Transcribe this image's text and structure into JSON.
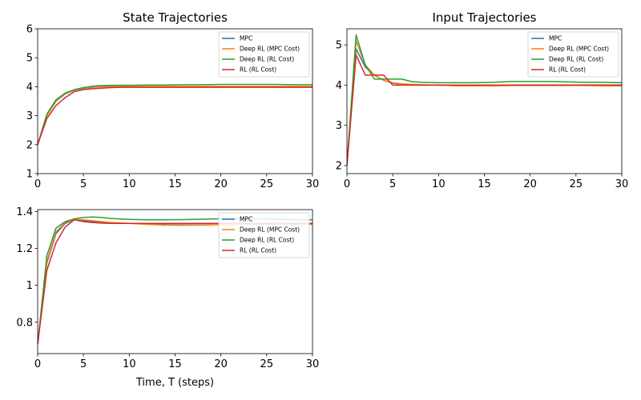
{
  "chart_data": [
    {
      "type": "line",
      "title": "State Trajectories",
      "xlabel": "",
      "ylabel": "",
      "xlim": [
        0,
        30
      ],
      "ylim": [
        1,
        6
      ],
      "xticks": [
        0,
        5,
        10,
        15,
        20,
        25,
        30
      ],
      "yticks": [
        1,
        2,
        3,
        4,
        5,
        6
      ],
      "legend": "top-right",
      "grid": false,
      "x": [
        0,
        1,
        2,
        3,
        4,
        5,
        6,
        7,
        8,
        9,
        10,
        12,
        14,
        16,
        18,
        20,
        22,
        24,
        26,
        28,
        30
      ],
      "series": [
        {
          "name": "MPC",
          "color": "#1f77b4",
          "values": [
            2.0,
            3.0,
            3.5,
            3.75,
            3.88,
            3.95,
            3.98,
            4.0,
            4.0,
            4.0,
            4.0,
            4.0,
            4.0,
            4.0,
            4.0,
            4.0,
            4.0,
            4.0,
            4.0,
            4.0,
            4.0
          ]
        },
        {
          "name": "Deep RL (MPC Cost)",
          "color": "#ff7f0e",
          "values": [
            2.0,
            3.0,
            3.52,
            3.76,
            3.89,
            3.96,
            3.99,
            4.0,
            4.0,
            4.01,
            4.01,
            4.01,
            4.01,
            4.01,
            4.01,
            4.01,
            4.01,
            4.01,
            4.01,
            4.01,
            4.01
          ]
        },
        {
          "name": "Deep RL (RL Cost)",
          "color": "#2ca02c",
          "values": [
            2.0,
            3.05,
            3.55,
            3.78,
            3.9,
            3.97,
            4.02,
            4.04,
            4.05,
            4.05,
            4.05,
            4.06,
            4.06,
            4.07,
            4.07,
            4.08,
            4.08,
            4.08,
            4.08,
            4.07,
            4.07
          ]
        },
        {
          "name": "RL (RL Cost)",
          "color": "#d62728",
          "values": [
            2.0,
            2.9,
            3.35,
            3.62,
            3.83,
            3.9,
            3.93,
            3.95,
            3.97,
            3.98,
            3.98,
            3.98,
            3.98,
            3.98,
            3.98,
            3.98,
            3.98,
            3.98,
            3.98,
            3.98,
            3.98
          ]
        }
      ]
    },
    {
      "type": "line",
      "title": "Input Trajectories",
      "xlabel": "",
      "ylabel": "",
      "xlim": [
        0,
        30
      ],
      "ylim": [
        1.8,
        5.4
      ],
      "xticks": [
        0,
        5,
        10,
        15,
        20,
        25,
        30
      ],
      "yticks": [
        2,
        3,
        4,
        5
      ],
      "legend": "top-right",
      "grid": false,
      "x": [
        0,
        1,
        2,
        3,
        4,
        5,
        6,
        7,
        8,
        10,
        12,
        14,
        16,
        18,
        20,
        22,
        24,
        26,
        28,
        30
      ],
      "series": [
        {
          "name": "MPC",
          "color": "#1f77b4",
          "values": [
            2.0,
            4.9,
            4.45,
            4.25,
            4.12,
            4.05,
            4.02,
            4.01,
            4.0,
            4.0,
            3.99,
            3.99,
            3.99,
            4.0,
            4.0,
            4.0,
            4.0,
            4.0,
            4.0,
            4.0
          ]
        },
        {
          "name": "Deep RL (MPC Cost)",
          "color": "#ff7f0e",
          "values": [
            2.0,
            5.1,
            4.5,
            4.25,
            4.12,
            4.06,
            4.03,
            4.02,
            4.01,
            4.0,
            3.98,
            3.98,
            3.98,
            3.99,
            3.99,
            3.99,
            3.99,
            3.99,
            3.98,
            3.98
          ]
        },
        {
          "name": "Deep RL (RL Cost)",
          "color": "#2ca02c",
          "values": [
            2.0,
            5.25,
            4.5,
            4.15,
            4.15,
            4.15,
            4.15,
            4.09,
            4.07,
            4.06,
            4.06,
            4.06,
            4.07,
            4.09,
            4.09,
            4.09,
            4.08,
            4.07,
            4.07,
            4.06
          ]
        },
        {
          "name": "RL (RL Cost)",
          "color": "#d62728",
          "values": [
            2.0,
            4.75,
            4.25,
            4.25,
            4.25,
            4.0,
            4.0,
            4.0,
            4.0,
            4.0,
            4.0,
            4.0,
            4.0,
            4.0,
            4.0,
            4.0,
            4.0,
            4.0,
            4.0,
            4.0
          ]
        }
      ]
    },
    {
      "type": "line",
      "title": "",
      "xlabel": "Time, T (steps)",
      "ylabel": "",
      "xlim": [
        0,
        30
      ],
      "ylim": [
        0.63,
        1.41
      ],
      "xticks": [
        0,
        5,
        10,
        15,
        20,
        25,
        30
      ],
      "yticks": [
        0.8,
        1.0,
        1.2,
        1.4
      ],
      "legend": "top-right",
      "grid": false,
      "x": [
        0,
        1,
        2,
        3,
        4,
        5,
        6,
        7,
        8,
        10,
        12,
        14,
        16,
        18,
        20,
        22,
        24,
        26,
        28,
        30
      ],
      "series": [
        {
          "name": "MPC",
          "color": "#1f77b4",
          "values": [
            0.68,
            1.12,
            1.28,
            1.335,
            1.355,
            1.35,
            1.345,
            1.34,
            1.338,
            1.335,
            1.333,
            1.333,
            1.333,
            1.334,
            1.335,
            1.335,
            1.335,
            1.335,
            1.335,
            1.335
          ]
        },
        {
          "name": "Deep RL (MPC Cost)",
          "color": "#ff7f0e",
          "values": [
            0.68,
            1.13,
            1.29,
            1.34,
            1.357,
            1.355,
            1.35,
            1.345,
            1.34,
            1.335,
            1.33,
            1.326,
            1.325,
            1.326,
            1.328,
            1.33,
            1.33,
            1.33,
            1.33,
            1.33
          ]
        },
        {
          "name": "Deep RL (RL Cost)",
          "color": "#2ca02c",
          "values": [
            0.68,
            1.16,
            1.31,
            1.345,
            1.36,
            1.367,
            1.37,
            1.367,
            1.362,
            1.357,
            1.355,
            1.355,
            1.356,
            1.358,
            1.36,
            1.361,
            1.36,
            1.358,
            1.356,
            1.355
          ]
        },
        {
          "name": "RL (RL Cost)",
          "color": "#d62728",
          "values": [
            0.68,
            1.08,
            1.23,
            1.315,
            1.355,
            1.345,
            1.34,
            1.337,
            1.335,
            1.335,
            1.335,
            1.335,
            1.335,
            1.335,
            1.335,
            1.335,
            1.335,
            1.335,
            1.335,
            1.335
          ]
        }
      ]
    }
  ]
}
